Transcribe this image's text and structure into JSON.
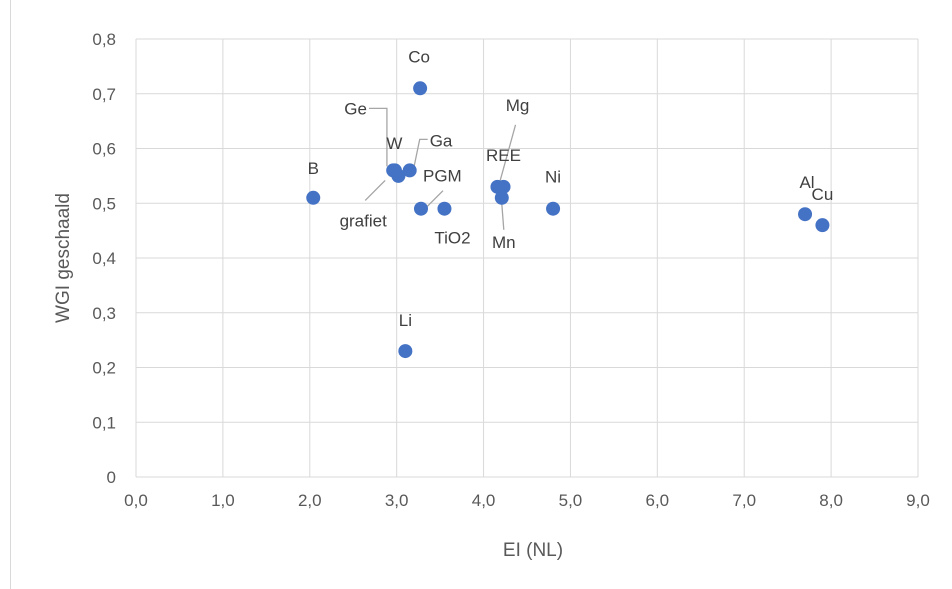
{
  "chart_data": {
    "type": "scatter",
    "title": "",
    "xlabel": "EI (NL)",
    "ylabel": "WGI geschaald",
    "xlim": [
      0,
      9
    ],
    "ylim": [
      0,
      0.8
    ],
    "x_ticks": [
      "0,0",
      "1,0",
      "2,0",
      "3,0",
      "4,0",
      "5,0",
      "6,0",
      "7,0",
      "8,0",
      "9,0"
    ],
    "y_ticks": [
      "0",
      "0,1",
      "0,2",
      "0,3",
      "0,4",
      "0,5",
      "0,6",
      "0,7",
      "0,8"
    ],
    "grid": true,
    "legend": "none",
    "marker_color": "#4472c4",
    "points": [
      {
        "label": "Co",
        "x": 3.27,
        "y": 0.71
      },
      {
        "label": "B",
        "x": 2.04,
        "y": 0.51
      },
      {
        "label": "Ge",
        "x": 2.98,
        "y": 0.56
      },
      {
        "label": "W",
        "x": 3.02,
        "y": 0.55
      },
      {
        "label": "Ga",
        "x": 3.15,
        "y": 0.56
      },
      {
        "label": "grafiet",
        "x": 2.96,
        "y": 0.56
      },
      {
        "label": "PGM",
        "x": 3.28,
        "y": 0.49
      },
      {
        "label": "TiO2",
        "x": 3.55,
        "y": 0.49
      },
      {
        "label": "REE",
        "x": 4.16,
        "y": 0.53
      },
      {
        "label": "Mg",
        "x": 4.23,
        "y": 0.53
      },
      {
        "label": "Mn",
        "x": 4.21,
        "y": 0.51
      },
      {
        "label": "Ni",
        "x": 4.8,
        "y": 0.49
      },
      {
        "label": "Al",
        "x": 7.7,
        "y": 0.48
      },
      {
        "label": "Cu",
        "x": 7.9,
        "y": 0.46
      },
      {
        "label": "Li",
        "x": 3.1,
        "y": 0.23
      }
    ]
  }
}
